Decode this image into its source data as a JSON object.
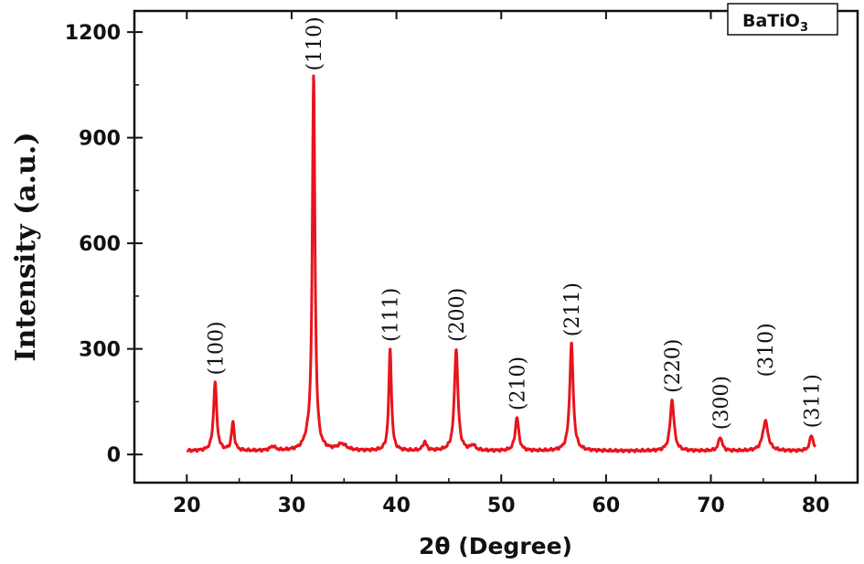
{
  "chart_data": {
    "type": "line",
    "legend": {
      "label": "BaTiO",
      "subscript": "3",
      "placement": "top-right"
    },
    "xlabel": {
      "main": "2θ",
      "unit": "(Degree)"
    },
    "ylabel": "Intensity (a.u.)",
    "xlim": [
      15,
      84
    ],
    "ylim": [
      -80,
      1260
    ],
    "xticks": [
      20,
      30,
      40,
      50,
      60,
      70,
      80
    ],
    "xtick_labels": [
      "20",
      "30",
      "40",
      "50",
      "60",
      "70",
      "80"
    ],
    "yticks": [
      0,
      300,
      600,
      900,
      1200
    ],
    "ytick_labels": [
      "0",
      "300",
      "600",
      "900",
      "1200"
    ],
    "grid": false,
    "series": [
      {
        "color": "#e8141c",
        "x_start": 20,
        "x_end": 80,
        "baseline": 10,
        "peaks": [
          {
            "x": 22.7,
            "height": 195,
            "width": 0.18
          },
          {
            "x": 24.4,
            "height": 80,
            "width": 0.16
          },
          {
            "x": 28.2,
            "height": 12,
            "width": 0.3
          },
          {
            "x": 31.5,
            "height": 20,
            "width": 0.4
          },
          {
            "x": 32.1,
            "height": 1060,
            "width": 0.15
          },
          {
            "x": 34.8,
            "height": 18,
            "width": 0.5
          },
          {
            "x": 39.4,
            "height": 290,
            "width": 0.15
          },
          {
            "x": 42.7,
            "height": 25,
            "width": 0.2
          },
          {
            "x": 45.7,
            "height": 290,
            "width": 0.2
          },
          {
            "x": 47.3,
            "height": 15,
            "width": 0.25
          },
          {
            "x": 51.5,
            "height": 95,
            "width": 0.2
          },
          {
            "x": 56.7,
            "height": 305,
            "width": 0.2
          },
          {
            "x": 66.3,
            "height": 145,
            "width": 0.22
          },
          {
            "x": 70.9,
            "height": 40,
            "width": 0.2
          },
          {
            "x": 75.2,
            "height": 85,
            "width": 0.3
          },
          {
            "x": 79.6,
            "height": 45,
            "width": 0.2
          }
        ]
      }
    ],
    "annotations": [
      {
        "text": "(100)",
        "x": 22.7,
        "y": 225
      },
      {
        "text": "(110)",
        "x": 32.1,
        "y": 1090
      },
      {
        "text": "(111)",
        "x": 39.4,
        "y": 320
      },
      {
        "text": "(200)",
        "x": 45.7,
        "y": 320
      },
      {
        "text": "(210)",
        "x": 51.5,
        "y": 125
      },
      {
        "text": "(211)",
        "x": 56.7,
        "y": 335
      },
      {
        "text": "(220)",
        "x": 66.3,
        "y": 175
      },
      {
        "text": "(300)",
        "x": 70.9,
        "y": 70
      },
      {
        "text": "(310)",
        "x": 75.2,
        "y": 220
      },
      {
        "text": "(311)",
        "x": 79.6,
        "y": 75
      }
    ]
  }
}
